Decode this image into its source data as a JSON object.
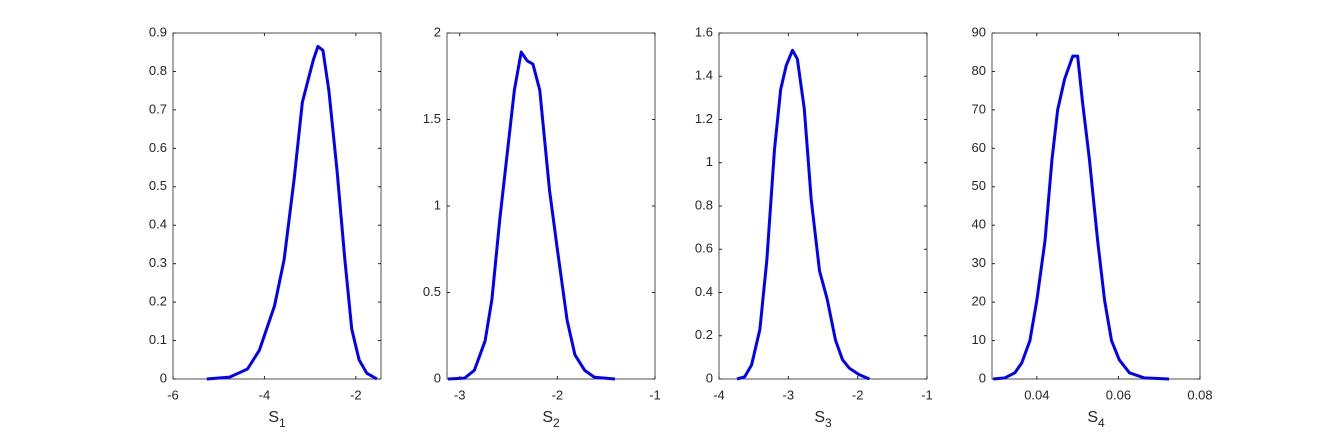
{
  "chart_data": [
    {
      "type": "line",
      "color": "#0000ff",
      "xlabel": "S",
      "xlabel_subscript": "1",
      "xlim": [
        -6,
        -1.45
      ],
      "ylim": [
        0,
        0.9
      ],
      "xticks": [
        -6,
        -4,
        -2
      ],
      "yticks": [
        0,
        0.1,
        0.2,
        0.3,
        0.4,
        0.5,
        0.6,
        0.7,
        0.8,
        0.9
      ],
      "x": [
        -5.26,
        -4.76,
        -4.48,
        -4.37,
        -4.11,
        -3.78,
        -3.57,
        -3.35,
        -3.17,
        -3.04,
        -2.93,
        -2.83,
        -2.72,
        -2.59,
        -2.41,
        -2.24,
        -2.09,
        -1.93,
        -1.76,
        -1.54
      ],
      "values": [
        0,
        0.005,
        0.02,
        0.026,
        0.075,
        0.19,
        0.31,
        0.52,
        0.72,
        0.78,
        0.83,
        0.865,
        0.855,
        0.75,
        0.54,
        0.31,
        0.13,
        0.05,
        0.015,
        0
      ]
    },
    {
      "type": "line",
      "color": "#0000ff",
      "xlabel": "S",
      "xlabel_subscript": "2",
      "xlim": [
        -3.13,
        -1
      ],
      "ylim": [
        0,
        2
      ],
      "xticks": [
        -3,
        -2,
        -1
      ],
      "yticks": [
        0,
        0.5,
        1,
        1.5,
        2
      ],
      "x": [
        -3.12,
        -2.95,
        -2.85,
        -2.74,
        -2.67,
        -2.59,
        -2.52,
        -2.44,
        -2.37,
        -2.31,
        -2.25,
        -2.18,
        -2.08,
        -2.0,
        -1.9,
        -1.82,
        -1.72,
        -1.62,
        -1.41
      ],
      "values": [
        0,
        0.005,
        0.05,
        0.22,
        0.46,
        0.92,
        1.27,
        1.67,
        1.89,
        1.84,
        1.82,
        1.67,
        1.09,
        0.75,
        0.34,
        0.14,
        0.05,
        0.01,
        0
      ]
    },
    {
      "type": "line",
      "color": "#0000ff",
      "xlabel": "S",
      "xlabel_subscript": "3",
      "xlim": [
        -4,
        -1
      ],
      "ylim": [
        0,
        1.6
      ],
      "xticks": [
        -4,
        -3,
        -2,
        -1
      ],
      "yticks": [
        0,
        0.2,
        0.4,
        0.6,
        0.8,
        1,
        1.2,
        1.4,
        1.6
      ],
      "x": [
        -3.74,
        -3.63,
        -3.53,
        -3.41,
        -3.31,
        -3.2,
        -3.11,
        -3.03,
        -2.94,
        -2.87,
        -2.77,
        -2.67,
        -2.55,
        -2.44,
        -2.32,
        -2.22,
        -2.12,
        -1.98,
        -1.83
      ],
      "values": [
        0,
        0.01,
        0.065,
        0.23,
        0.55,
        1.06,
        1.34,
        1.45,
        1.52,
        1.48,
        1.25,
        0.83,
        0.5,
        0.37,
        0.18,
        0.09,
        0.05,
        0.02,
        0
      ]
    },
    {
      "type": "line",
      "color": "#0000ff",
      "xlabel": "S",
      "xlabel_subscript": "4",
      "xlim": [
        0.029,
        0.08
      ],
      "ylim": [
        0,
        90
      ],
      "xticks": [
        0.04,
        0.06,
        0.08
      ],
      "yticks": [
        0,
        10,
        20,
        30,
        40,
        50,
        60,
        70,
        80,
        90
      ],
      "x": [
        0.0293,
        0.0322,
        0.0346,
        0.0363,
        0.0383,
        0.04,
        0.042,
        0.0437,
        0.0451,
        0.0468,
        0.0488,
        0.05,
        0.0512,
        0.0529,
        0.0549,
        0.0566,
        0.0583,
        0.0602,
        0.0627,
        0.0663,
        0.0724
      ],
      "values": [
        0,
        0.3,
        1.6,
        4.2,
        10,
        20.5,
        36,
        57,
        70,
        78,
        84,
        84,
        72,
        57,
        36,
        20.5,
        10,
        5,
        1.6,
        0.3,
        0
      ]
    }
  ]
}
